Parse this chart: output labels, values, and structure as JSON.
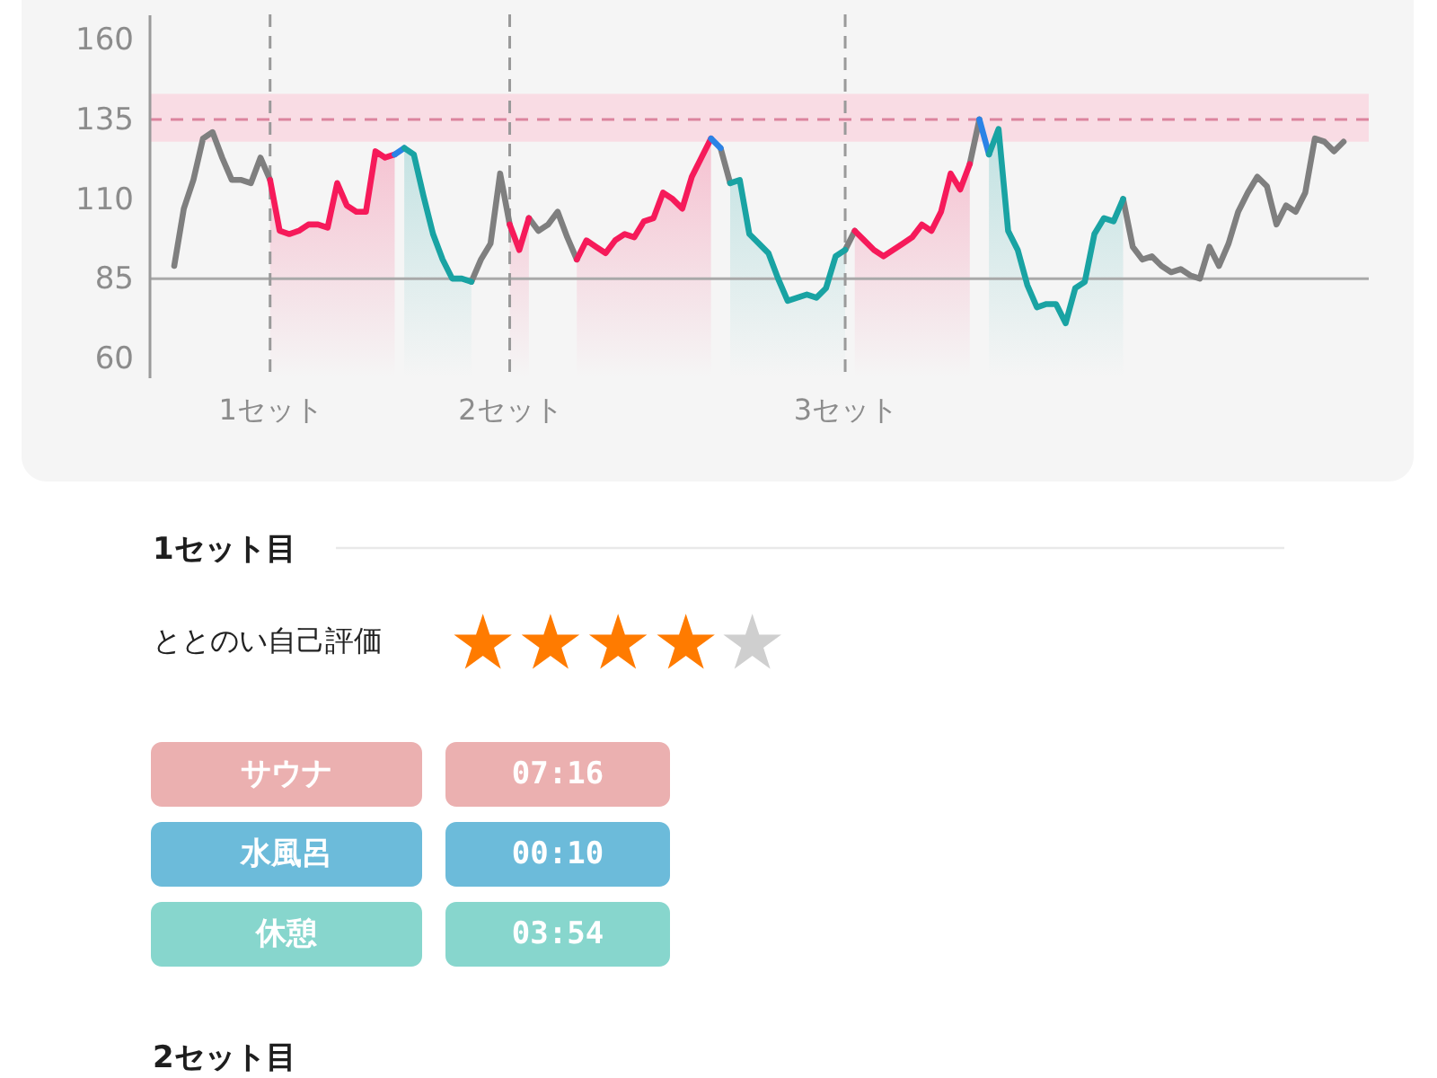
{
  "chart_data": [
    {
      "type": "line",
      "categories": [
        null,
        null,
        null,
        null,
        null,
        null,
        null,
        null,
        null,
        null,
        "1セット",
        null,
        null,
        null,
        null,
        null,
        null,
        null,
        null,
        null,
        null,
        null,
        null,
        null,
        null,
        null,
        null,
        null,
        null,
        null,
        null,
        null,
        null,
        null,
        null,
        "2セット",
        null,
        null,
        null,
        null,
        null,
        null,
        null,
        null,
        null,
        null,
        null,
        null,
        null,
        null,
        null,
        null,
        null,
        null,
        null,
        null,
        null,
        null,
        null,
        null,
        null,
        null,
        null,
        null,
        null,
        null,
        null,
        null,
        null,
        null,
        "3セット",
        null,
        null,
        null,
        null,
        null,
        null,
        null,
        null,
        null,
        null,
        null,
        null,
        null,
        null,
        null,
        null,
        null,
        null,
        null,
        null,
        null,
        null,
        null,
        null,
        null,
        null,
        null,
        null,
        null,
        null,
        null,
        null,
        null,
        null,
        null,
        null,
        null,
        null,
        null,
        null,
        null,
        null,
        null,
        null,
        null,
        null,
        null,
        null,
        null,
        null,
        null,
        null
      ],
      "ylim": [
        54,
        168
      ],
      "yticks": [
        60,
        85,
        110,
        135,
        160
      ],
      "bands": [
        {
          "axis": "y",
          "from": 128,
          "to": 143,
          "color": "#f9dce4"
        }
      ],
      "ref_lines": [
        {
          "axis": "y",
          "value": 135,
          "color": "#dc849e",
          "line_style": "dashed"
        },
        {
          "axis": "y",
          "value": 85,
          "color": "#a9a9a9"
        },
        {
          "axis": "x",
          "value": "1セット",
          "color": "#9a9a9a",
          "line_style": "dashed"
        },
        {
          "axis": "x",
          "value": "2セット",
          "color": "#9a9a9a",
          "line_style": "dashed"
        },
        {
          "axis": "x",
          "value": "3セット",
          "color": "#9a9a9a",
          "line_style": "dashed"
        }
      ],
      "series": [
        {
          "color": "#7f7f7f",
          "values": [
            89,
            107,
            116,
            129,
            131,
            123,
            116,
            116,
            115,
            123,
            116,
            null,
            null,
            null,
            null,
            null,
            null,
            null,
            null,
            null,
            null,
            null,
            null,
            null,
            null,
            null,
            null,
            null,
            null,
            null,
            null,
            84,
            91,
            96,
            118,
            102,
            null,
            104,
            100,
            102,
            106,
            98,
            91,
            null,
            null,
            null,
            null,
            null,
            null,
            null,
            null,
            null,
            null,
            null,
            null,
            null,
            null,
            126,
            115,
            null,
            null,
            null,
            null,
            null,
            null,
            null,
            null,
            null,
            null,
            null,
            94,
            100,
            null,
            null,
            null,
            null,
            null,
            null,
            null,
            null,
            null,
            null,
            null,
            121,
            135,
            null,
            null,
            null,
            null,
            null,
            null,
            null,
            null,
            null,
            null,
            null,
            null,
            null,
            null,
            110,
            95,
            91,
            92,
            89,
            87,
            88,
            86,
            85,
            95,
            89,
            96,
            106,
            112,
            117,
            114,
            102,
            108,
            106,
            112,
            129,
            128,
            125,
            128
          ]
        },
        {
          "type": "area",
          "color": "#f61a5a",
          "values": [
            null,
            null,
            null,
            null,
            null,
            null,
            null,
            null,
            null,
            null,
            116,
            100,
            99,
            100,
            102,
            102,
            101,
            115,
            108,
            106,
            106,
            125,
            123,
            124,
            null,
            null,
            null,
            null,
            null,
            null,
            null,
            null,
            null,
            null,
            null,
            102,
            94,
            104,
            null,
            null,
            null,
            null,
            91,
            97,
            95,
            93,
            97,
            99,
            98,
            103,
            104,
            112,
            110,
            107,
            117,
            123,
            129,
            null,
            null,
            null,
            null,
            null,
            null,
            null,
            null,
            null,
            null,
            null,
            null,
            null,
            null,
            100,
            97,
            94,
            92,
            94,
            96,
            98,
            102,
            100,
            106,
            118,
            113,
            121,
            null,
            null,
            null,
            null,
            null,
            null,
            null,
            null,
            null,
            null,
            null,
            null,
            null,
            null,
            null,
            null,
            null,
            null,
            null,
            null,
            null,
            null,
            null,
            null,
            null,
            null,
            null,
            null,
            null,
            null,
            null,
            null,
            null,
            null,
            null,
            null,
            null,
            null,
            null
          ]
        },
        {
          "type": "line",
          "color": "#2b83e6",
          "values": [
            null,
            null,
            null,
            null,
            null,
            null,
            null,
            null,
            null,
            null,
            null,
            null,
            null,
            null,
            null,
            null,
            null,
            null,
            null,
            null,
            null,
            null,
            null,
            124,
            126,
            null,
            null,
            null,
            null,
            null,
            null,
            null,
            null,
            null,
            null,
            null,
            null,
            null,
            null,
            null,
            null,
            null,
            null,
            null,
            null,
            null,
            null,
            null,
            null,
            null,
            null,
            null,
            null,
            null,
            null,
            null,
            129,
            126,
            null,
            null,
            null,
            null,
            null,
            null,
            null,
            null,
            null,
            null,
            null,
            null,
            null,
            null,
            null,
            null,
            null,
            null,
            null,
            null,
            null,
            null,
            null,
            null,
            null,
            null,
            135,
            124,
            null,
            null,
            null,
            null,
            null,
            null,
            null,
            null,
            null,
            null,
            null,
            null,
            null,
            null,
            null,
            null,
            null,
            null,
            null,
            null,
            null,
            null,
            null,
            null,
            null,
            null,
            null,
            null,
            null,
            null,
            null,
            null,
            null,
            null,
            null,
            null,
            null
          ]
        },
        {
          "type": "area",
          "color": "#19a3a3",
          "values": [
            null,
            null,
            null,
            null,
            null,
            null,
            null,
            null,
            null,
            null,
            null,
            null,
            null,
            null,
            null,
            null,
            null,
            null,
            null,
            null,
            null,
            null,
            null,
            null,
            126,
            124,
            111,
            99,
            91,
            85,
            85,
            84,
            null,
            null,
            null,
            null,
            null,
            null,
            null,
            null,
            null,
            null,
            null,
            null,
            null,
            null,
            null,
            null,
            null,
            null,
            null,
            null,
            null,
            null,
            null,
            null,
            null,
            null,
            115,
            116,
            99,
            96,
            93,
            85,
            78,
            79,
            80,
            79,
            82,
            92,
            94,
            null,
            null,
            null,
            null,
            null,
            null,
            null,
            null,
            null,
            null,
            null,
            null,
            null,
            null,
            124,
            132,
            100,
            94,
            83,
            76,
            77,
            77,
            71,
            82,
            84,
            99,
            104,
            103,
            110,
            null,
            null,
            null,
            null,
            null,
            null,
            null,
            null,
            null,
            null,
            null,
            null,
            null,
            null,
            null,
            null,
            null,
            null,
            null,
            null,
            null,
            null,
            null
          ]
        }
      ]
    },
    {
      "type": "other",
      "title": "1セット目",
      "annotations": [
        "ととのい自己評価",
        "★★★★",
        "★",
        "2セット目"
      ],
      "categories": [
        "サウナ",
        "水風呂",
        "休憩"
      ],
      "value_labels": [
        "07:16",
        "00:10",
        "03:54"
      ],
      "colors": [
        "#ebb0b0",
        "#6cbbda",
        "#87d6cd"
      ]
    }
  ]
}
